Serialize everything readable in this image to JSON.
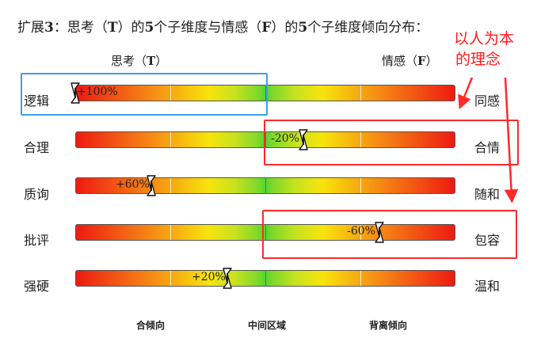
{
  "header": {
    "prefix": "扩展",
    "num1": "3",
    "mid1": "：思考（",
    "letter_t": "T",
    "mid2": "）的",
    "num2": "5",
    "mid3": "个子维度与情感（",
    "letter_f": "F",
    "mid4": "）的",
    "num3": "5",
    "tail": "个子维度倾向分布："
  },
  "columns": {
    "left_title": "思考（",
    "left_letter": "T",
    "left_close": "）",
    "right_title": "情感（",
    "right_letter": "F",
    "right_close": "）"
  },
  "annotation": {
    "line1": "以人为本",
    "line2": "的理念"
  },
  "rows": [
    {
      "left": "逻辑",
      "right": "同感",
      "value_label": "+100%",
      "value": 100
    },
    {
      "left": "合理",
      "right": "合情",
      "value_label": "-20%",
      "value": -20
    },
    {
      "left": "质询",
      "right": "随和",
      "value_label": "+60%",
      "value": 60
    },
    {
      "left": "批评",
      "right": "包容",
      "value_label": "-60%",
      "value": -60
    },
    {
      "left": "强硬",
      "right": "温和",
      "value_label": "+20%",
      "value": 20
    }
  ],
  "footer": {
    "left": "合倾向",
    "center": "中间区域",
    "right": "背离倾向"
  },
  "colors": {
    "blue_box": "#3aa0e8",
    "red_box": "#ff2a2a",
    "annotation": "#ff1a1a"
  }
}
